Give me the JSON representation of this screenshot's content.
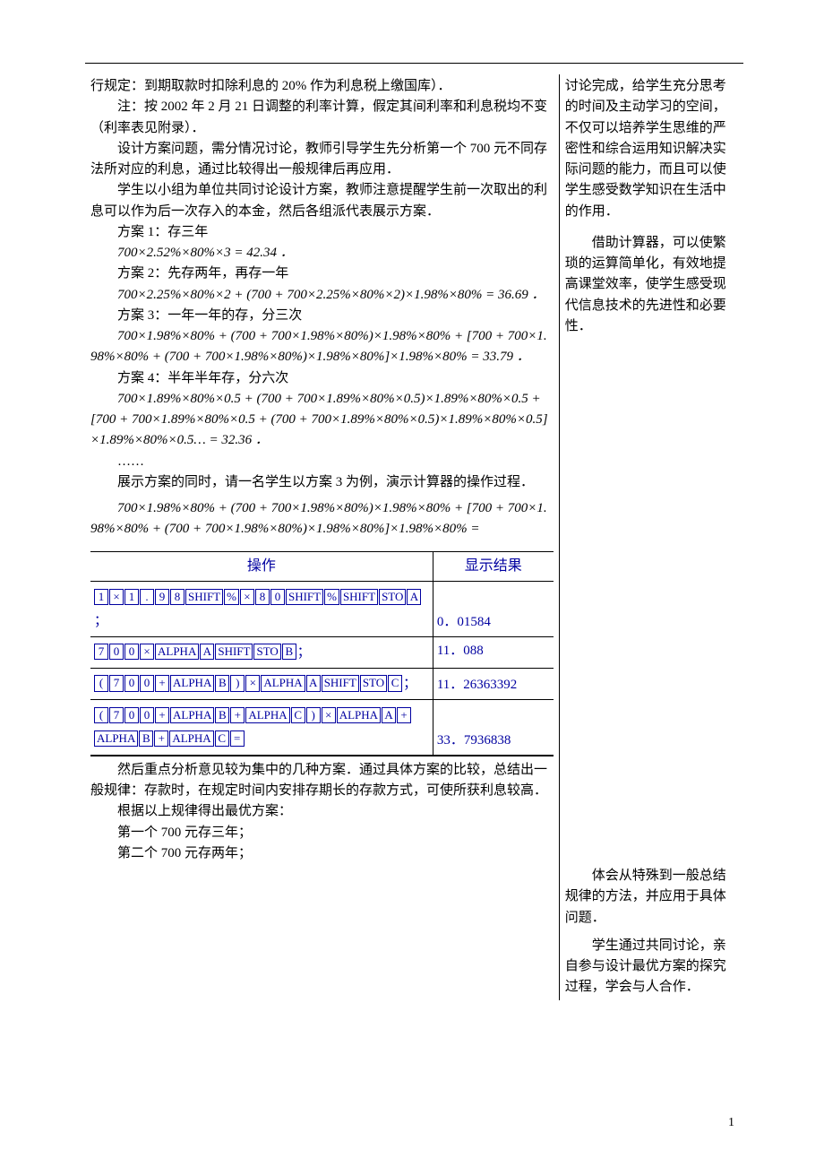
{
  "page_number": "1",
  "left": {
    "p1": "行规定：到期取款时扣除利息的 20% 作为利息税上缴国库）．",
    "p2": "注：按 2002 年 2 月 21 日调整的利率计算，假定其间利率和利息税均不变（利率表见附录）．",
    "p3": "设计方案问题，需分情况讨论，教师引导学生先分析第一个 700 元不同存法所对应的利息，通过比较得出一般规律后再应用．",
    "p4": "学生以小组为单位共同讨论设计方案，教师注意提醒学生前一次取出的利息可以作为后一次存入的本金，然后各组派代表展示方案．",
    "plan1_label": "方案 1：存三年",
    "plan1_formula": "700×2.52%×80%×3 = 42.34 ．",
    "plan2_label": "方案 2：先存两年，再存一年",
    "plan2_formula": "700×2.25%×80%×2 + (700 + 700×2.25%×80%×2)×1.98%×80% = 36.69 ．",
    "plan3_label": "方案 3：一年一年的存，分三次",
    "plan3_formula": "700×1.98%×80% + (700 + 700×1.98%×80%)×1.98%×80% + [700 + 700×1.98%×80% + (700 + 700×1.98%×80%)×1.98%×80%]×1.98%×80% = 33.79 ．",
    "plan4_label": "方案 4：半年半年存，分六次",
    "plan4_formula": "700×1.89%×80%×0.5 + (700 + 700×1.89%×80%×0.5)×1.89%×80%×0.5 + [700 + 700×1.89%×80%×0.5 + (700 + 700×1.89%×80%×0.5)×1.89%×80%×0.5]×1.89%×80%×0.5… = 32.36 ．",
    "dots": "……",
    "demo": "展示方案的同时，请一名学生以方案 3 为例，演示计算器的操作过程．",
    "demo_formula": "700×1.98%×80% + (700 + 700×1.98%×80%)×1.98%×80% + [700 + 700×1.98%×80% + (700 + 700×1.98%×80%)×1.98%×80%]×1.98%×80% =",
    "conclusion1": "然后重点分析意见较为集中的几种方案．通过具体方案的比较，总结出一般规律：存款时，在规定时间内安排存期长的存款方式，可使所获利息较高．",
    "conclusion2": "根据以上规律得出最优方案：",
    "conclusion3": "第一个 700 元存三年；",
    "conclusion4": "第二个 700 元存两年；"
  },
  "right": {
    "r1": "讨论完成，给学生充分思考的时间及主动学习的空间，不仅可以培养学生思维的严密性和综合运用知识解决实际问题的能力，而且可以使学生感受数学知识在生活中的作用．",
    "r2": "借助计算器，可以使繁琐的运算简单化，有效地提高课堂效率，使学生感受现代信息技术的先进性和必要性．",
    "r3": "体会从特殊到一般总结规律的方法，并应用于具体问题．",
    "r4": "学生通过共同讨论，亲自参与设计最优方案的探究过程，学会与人合作．"
  },
  "table": {
    "header_op": "操作",
    "header_res": "显示结果",
    "row1_keys": [
      "1",
      "×",
      "1",
      ".",
      "9",
      "8",
      "SHIFT",
      "%",
      "×",
      "8",
      "0",
      "SHIFT",
      "%",
      "SHIFT",
      "STO",
      "A",
      "；"
    ],
    "row1_res": "0．01584",
    "row2_keys": [
      "7",
      "0",
      "0",
      "×",
      "ALPHA",
      "A",
      "SHIFT",
      "STO",
      "B",
      "；"
    ],
    "row2_res": "11．088",
    "row3_keys": [
      "(",
      "7",
      "0",
      "0",
      "+",
      "ALPHA",
      "B",
      ")",
      "×",
      "ALPHA",
      "A",
      "SHIFT",
      "STO",
      "C",
      "；"
    ],
    "row3_res": "11．26363392",
    "row4_keys": [
      "(",
      "7",
      "0",
      "0",
      "+",
      "ALPHA",
      "B",
      "+",
      "ALPHA",
      "C",
      ")",
      "×",
      "ALPHA",
      "A",
      "+",
      "ALPHA",
      "B",
      "+",
      "ALPHA",
      "C",
      "="
    ],
    "row4_res": "33．7936838"
  }
}
